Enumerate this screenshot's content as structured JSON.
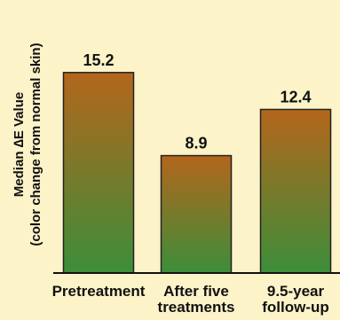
{
  "chart_data": {
    "type": "bar",
    "title": "",
    "xlabel": "",
    "ylabel_line1": "Median ∆E Value",
    "ylabel_line2": "(color change from normal skin)",
    "categories": [
      [
        "Pretreatment"
      ],
      [
        "After five",
        "treatments"
      ],
      [
        "9.5-year",
        "follow-up"
      ]
    ],
    "values": [
      15.2,
      8.9,
      12.4
    ],
    "value_labels": [
      "15.2",
      "8.9",
      "12.4"
    ],
    "ylim": [
      0,
      16.8
    ],
    "grid": false,
    "legend": "none"
  },
  "colors": {
    "background": "#fdf3c9",
    "bar_top": "#b3661c",
    "bar_bottom": "#3d8e3a",
    "bar_border": "#222222",
    "axis": "#111111",
    "text": "#111111"
  }
}
